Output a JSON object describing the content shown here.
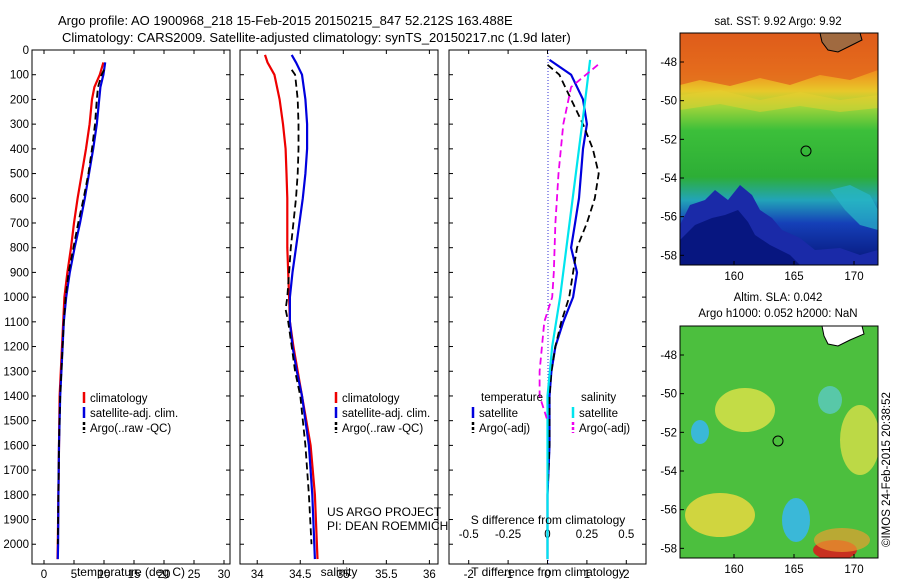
{
  "titles": {
    "line1": "Argo profile: AO 1900968_218 15-Feb-2015 20150215_847 52.212S 163.488E",
    "line2": "Climatology: CARS2009. Satellite-adjusted climatology: synTS_20150217.nc (1.9d later)"
  },
  "colors": {
    "climatology": "#ee0000",
    "satellite_adj": "#0000dd",
    "argo": "#000000",
    "s_satellite": "#00e5ee",
    "s_argo": "#ee00ee"
  },
  "chart_data": [
    {
      "type": "line",
      "panel": "temperature",
      "xlabel": "temperature (deg C)",
      "xlim": [
        -2,
        31
      ],
      "ylim": [
        2080,
        0
      ],
      "xticks": [
        0,
        5,
        10,
        15,
        20,
        25,
        30
      ],
      "xtick_labels": [
        "0",
        "5",
        "10",
        "15",
        "20",
        "25",
        "30"
      ],
      "yticks": [
        0,
        100,
        200,
        300,
        400,
        500,
        600,
        700,
        800,
        900,
        1000,
        1100,
        1200,
        1300,
        1400,
        1500,
        1600,
        1700,
        1800,
        1900,
        2000
      ],
      "ytick_labels": [
        "0",
        "100",
        "200",
        "300",
        "400",
        "500",
        "600",
        "700",
        "800",
        "900",
        "1000",
        "1100",
        "1200",
        "1300",
        "1400",
        "1500",
        "1600",
        "1700",
        "1800",
        "1900",
        "2000"
      ],
      "legend": {
        "position": "lower-center",
        "labels": [
          "climatology",
          "satellite-adj. clim.",
          "Argo(..raw -QC)"
        ]
      },
      "series": [
        {
          "name": "climatology",
          "style": "solid",
          "color": "climatology",
          "x": [
            9.9,
            9.3,
            8.4,
            8.0,
            7.6,
            7.0,
            6.3,
            5.6,
            5.0,
            4.5,
            3.9,
            3.4,
            3.2,
            3.0,
            2.8,
            2.6,
            2.5,
            2.4,
            2.3,
            2.25
          ],
          "y": [
            50,
            100,
            150,
            200,
            300,
            400,
            500,
            600,
            700,
            800,
            900,
            1000,
            1100,
            1200,
            1300,
            1400,
            1600,
            1800,
            2000,
            2060
          ]
        },
        {
          "name": "satellite-adj. clim.",
          "style": "solid",
          "color": "satellite_adj",
          "x": [
            10.2,
            9.9,
            9.4,
            9.2,
            8.8,
            8.2,
            7.5,
            6.8,
            6.0,
            5.1,
            4.3,
            3.7,
            3.3,
            3.1,
            2.9,
            2.7,
            2.5,
            2.4,
            2.35,
            2.3
          ],
          "y": [
            50,
            100,
            150,
            200,
            300,
            400,
            500,
            600,
            700,
            800,
            900,
            1000,
            1100,
            1200,
            1300,
            1400,
            1600,
            1800,
            2000,
            2060
          ]
        },
        {
          "name": "Argo(..raw -QC)",
          "style": "dashed",
          "color": "argo",
          "x": [
            10.0,
            9.6,
            9.0,
            8.8,
            8.5,
            8.0,
            7.4,
            6.6,
            5.7,
            4.9,
            4.1,
            3.6,
            3.3,
            3.1,
            2.9,
            2.7,
            2.5,
            2.4,
            2.3
          ],
          "y": [
            80,
            100,
            150,
            200,
            300,
            400,
            500,
            600,
            700,
            800,
            900,
            1000,
            1100,
            1200,
            1300,
            1400,
            1600,
            1800,
            2000
          ]
        }
      ]
    },
    {
      "type": "line",
      "panel": "salinity",
      "xlabel": "salinity",
      "xlim": [
        33.8,
        36.1
      ],
      "ylim": [
        2080,
        0
      ],
      "xticks": [
        34,
        34.5,
        35,
        35.5,
        36
      ],
      "xtick_labels": [
        "34",
        "34.5",
        "35",
        "35.5",
        "36"
      ],
      "legend": {
        "position": "lower-center",
        "labels": [
          "climatology",
          "satellite-adj. clim.",
          "Argo(..raw -QC)"
        ]
      },
      "annotations": [
        "US ARGO PROJECT",
        "PI: DEAN ROEMMICH"
      ],
      "series": [
        {
          "name": "climatology",
          "style": "solid",
          "color": "climatology",
          "x": [
            34.09,
            34.12,
            34.2,
            34.26,
            34.3,
            34.33,
            34.34,
            34.35,
            34.35,
            34.35,
            34.36,
            34.37,
            34.38,
            34.42,
            34.47,
            34.52,
            34.57,
            34.62,
            34.67,
            34.7
          ],
          "y": [
            20,
            50,
            100,
            200,
            300,
            400,
            500,
            600,
            700,
            800,
            900,
            1000,
            1100,
            1200,
            1300,
            1400,
            1500,
            1600,
            1800,
            2060
          ]
        },
        {
          "name": "satellite-adj. clim.",
          "style": "solid",
          "color": "satellite_adj",
          "x": [
            34.4,
            34.45,
            34.52,
            34.56,
            34.58,
            34.58,
            34.56,
            34.53,
            34.49,
            34.45,
            34.41,
            34.38,
            34.38,
            34.41,
            34.46,
            34.52,
            34.56,
            34.6,
            34.64,
            34.67
          ],
          "y": [
            20,
            50,
            100,
            200,
            300,
            400,
            500,
            600,
            700,
            800,
            900,
            1000,
            1100,
            1200,
            1300,
            1400,
            1500,
            1600,
            1800,
            2060
          ]
        },
        {
          "name": "Argo(..raw -QC)",
          "style": "dashed",
          "color": "argo",
          "x": [
            34.4,
            34.44,
            34.47,
            34.48,
            34.48,
            34.47,
            34.45,
            34.42,
            34.39,
            34.37,
            34.35,
            34.33,
            34.36,
            34.4,
            34.44,
            34.5,
            34.56,
            34.6,
            34.63
          ],
          "y": [
            80,
            100,
            200,
            300,
            400,
            500,
            600,
            700,
            800,
            900,
            1000,
            1050,
            1100,
            1200,
            1300,
            1400,
            1600,
            1800,
            2000
          ]
        }
      ]
    },
    {
      "type": "line",
      "panel": "differences",
      "xlabel": "T difference from climatology",
      "xlabel_top": "S difference from climatology",
      "xlim": [
        -2.5,
        2.5
      ],
      "ylim": [
        2080,
        0
      ],
      "xticks": [
        -2,
        -1,
        0,
        1,
        2
      ],
      "xtick_labels": [
        "-2",
        "-1",
        "0",
        "1",
        "2"
      ],
      "xticks_s": [
        -0.5,
        -0.25,
        0,
        0.25,
        0.5
      ],
      "xtick_labels_s": [
        "-0.5",
        "-0.25",
        "0",
        "0.25",
        "0.5"
      ],
      "legend": {
        "position": "lower-center",
        "groups": [
          {
            "title": "temperature",
            "labels": [
              "satellite",
              "Argo(-adj)"
            ]
          },
          {
            "title": "salinity",
            "labels": [
              "satellite",
              "Argo(-adj)"
            ]
          }
        ]
      },
      "series": [
        {
          "name": "satellite",
          "group": "temperature",
          "style": "solid",
          "color": "satellite_adj",
          "x": [
            0.05,
            0.6,
            0.9,
            1.0,
            0.9,
            0.85,
            0.8,
            0.7,
            0.6,
            0.75,
            0.65,
            0.4,
            0.2,
            0.1,
            0.05,
            0.05,
            0.0,
            0.0,
            0.0
          ],
          "y": [
            40,
            100,
            200,
            300,
            400,
            500,
            600,
            700,
            800,
            900,
            1000,
            1100,
            1200,
            1300,
            1400,
            1600,
            1800,
            2000,
            2060
          ]
        },
        {
          "name": "Argo(-adj)",
          "group": "temperature",
          "style": "dashed",
          "color": "argo",
          "x": [
            0.0,
            0.3,
            0.6,
            0.9,
            1.15,
            1.3,
            1.2,
            1.0,
            0.75,
            0.65,
            0.55,
            0.35,
            0.2,
            0.1,
            0.05,
            0.05,
            0.0,
            0.0
          ],
          "y": [
            60,
            100,
            200,
            300,
            400,
            500,
            600,
            700,
            800,
            900,
            1000,
            1100,
            1200,
            1300,
            1400,
            1600,
            1800,
            2000
          ]
        },
        {
          "name": "satellite",
          "group": "salinity",
          "style": "solid",
          "color": "s_satellite",
          "x": [
            0.27,
            0.24,
            0.2,
            0.16,
            0.12,
            0.08,
            0.03,
            0.0,
            0.0,
            0.0
          ],
          "y": [
            40,
            200,
            400,
            600,
            800,
            1000,
            1200,
            1400,
            1800,
            2060
          ]
        },
        {
          "name": "Argo(-adj)",
          "group": "salinity",
          "style": "dashed",
          "color": "s_argo",
          "x": [
            0.32,
            0.15,
            0.1,
            0.07,
            0.05,
            0.04,
            0.03,
            -0.02,
            -0.05,
            -0.05,
            0.0
          ],
          "y": [
            60,
            150,
            300,
            500,
            700,
            900,
            1000,
            1100,
            1300,
            1400,
            1500
          ]
        }
      ]
    }
  ],
  "maps": [
    {
      "title": "sat. SST: 9.92 Argo: 9.92",
      "lon_range": [
        155.5,
        172
      ],
      "lat_range": [
        -58.5,
        -46.5
      ],
      "xticks": [
        "160",
        "165",
        "170"
      ],
      "yticks": [
        "-48",
        "-50",
        "-52",
        "-54",
        "-56",
        "-58"
      ],
      "profile_marker": {
        "lon": 163.49,
        "lat": -52.21
      }
    },
    {
      "title_line1": "Altim. SLA: 0.042",
      "title_line2": "Argo h1000: 0.052 h2000: NaN",
      "lon_range": [
        155.5,
        172
      ],
      "lat_range": [
        -58.5,
        -46.5
      ],
      "xticks": [
        "160",
        "165",
        "170"
      ],
      "yticks": [
        "-48",
        "-50",
        "-52",
        "-54",
        "-56",
        "-58"
      ],
      "profile_marker": {
        "lon": 163.49,
        "lat": -52.21
      }
    }
  ],
  "credit": "©IMOS 24-Feb-2015 20:38:52"
}
